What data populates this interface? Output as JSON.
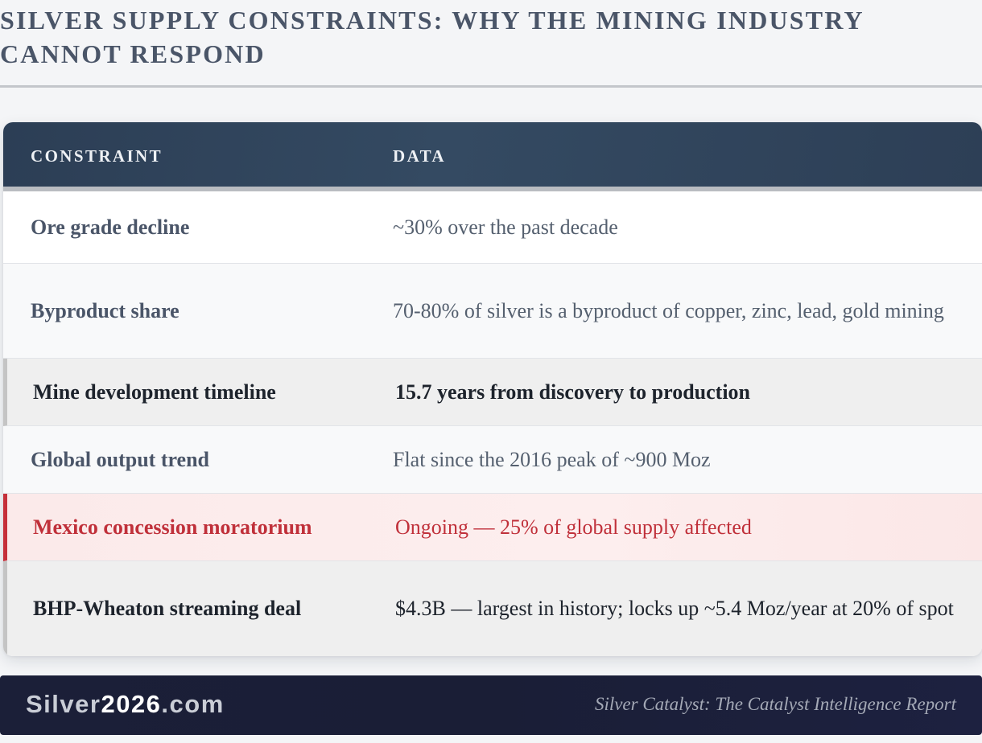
{
  "page": {
    "title": "Silver Supply Constraints: Why the Mining Industry Cannot Respond"
  },
  "table": {
    "headers": {
      "constraint": "Constraint",
      "data": "Data"
    },
    "rows": [
      {
        "constraint": "Ore grade decline",
        "data": "~30% over the past decade"
      },
      {
        "constraint": "Byproduct share",
        "data": "70-80% of silver is a byproduct of copper, zinc, lead, gold mining"
      },
      {
        "constraint": "Mine development timeline",
        "data": "15.7 years from discovery to production"
      },
      {
        "constraint": "Global output trend",
        "data": "Flat since the 2016 peak of ~900 Moz"
      },
      {
        "constraint": "Mexico concession moratorium",
        "data": "Ongoing — 25% of global supply affected"
      },
      {
        "constraint": "BHP-Wheaton streaming deal",
        "data": "$4.3B — largest in history; locks up ~5.4 Moz/year at 20% of spot"
      }
    ]
  },
  "footer": {
    "brand_prefix": "Silver",
    "brand_number": "2026",
    "brand_suffix": ".com",
    "tagline": "Silver Catalyst: The Catalyst Intelligence Report"
  },
  "colors": {
    "header_bg": "#2f4259",
    "alert_red": "#c0303a",
    "footer_bg": "#1b1f38"
  }
}
